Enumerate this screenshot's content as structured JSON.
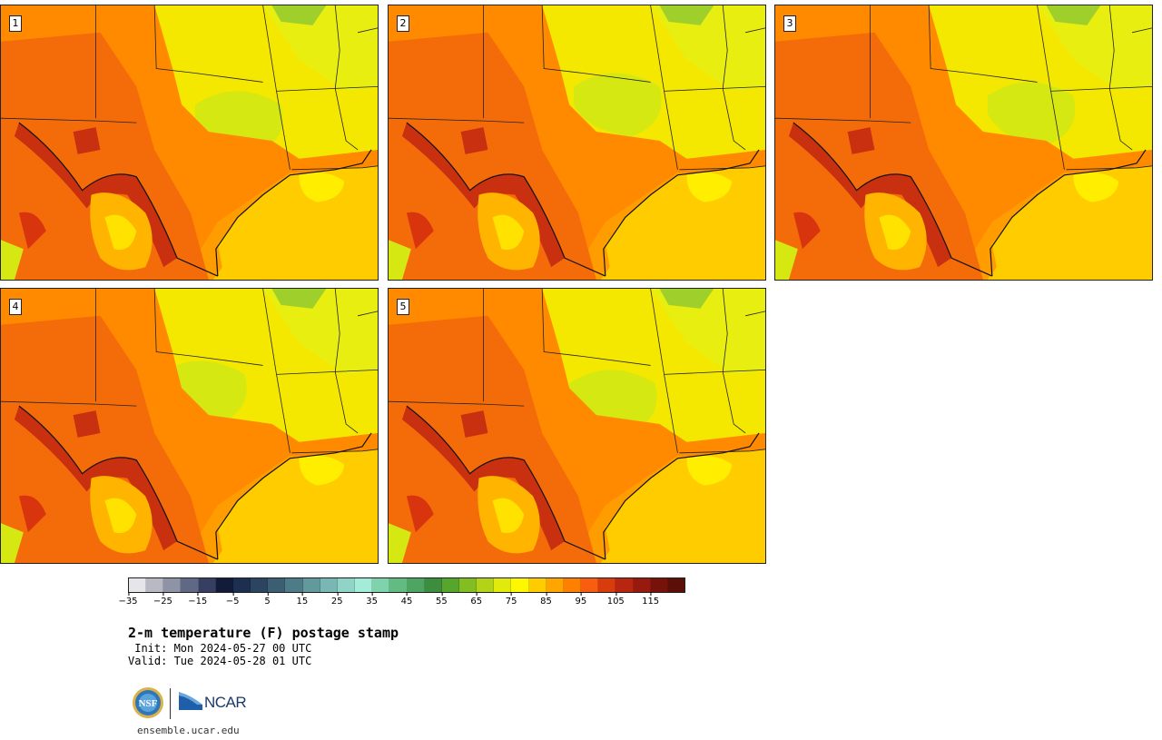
{
  "panels": [
    {
      "label": "1"
    },
    {
      "label": "2"
    },
    {
      "label": "3"
    },
    {
      "label": "4"
    },
    {
      "label": "5"
    }
  ],
  "colorbar": {
    "colors": [
      "#e6e6ea",
      "#b9b9c4",
      "#8f93a6",
      "#5f6985",
      "#363f61",
      "#121c3a",
      "#1d2f50",
      "#2b4561",
      "#3b5e72",
      "#4e7c86",
      "#629a9c",
      "#78b7b3",
      "#8fd4c7",
      "#a3ecd8",
      "#7fd3ac",
      "#62bc82",
      "#4ea461",
      "#3d8d3f",
      "#56a52d",
      "#82bd22",
      "#b3d416",
      "#e0ea0b",
      "#fff700",
      "#ffcc00",
      "#ffa500",
      "#ff8000",
      "#f85d10",
      "#d93c0c",
      "#b82511",
      "#981a0f",
      "#761209",
      "#5c0f07"
    ],
    "tick_labels": [
      "−35",
      "−25",
      "−15",
      "−5",
      "5",
      "15",
      "25",
      "35",
      "45",
      "55",
      "65",
      "75",
      "85",
      "95",
      "105",
      "115"
    ],
    "vmin": -35,
    "vmax": 125
  },
  "title": "2-m temperature (F) postage stamp",
  "init": " Init: Mon 2024-05-27 00 UTC",
  "valid": "Valid: Tue 2024-05-28 01 UTC",
  "logos": {
    "nsf": "NSF",
    "ncar": "NCAR"
  },
  "site_url": "ensemble.ucar.edu"
}
